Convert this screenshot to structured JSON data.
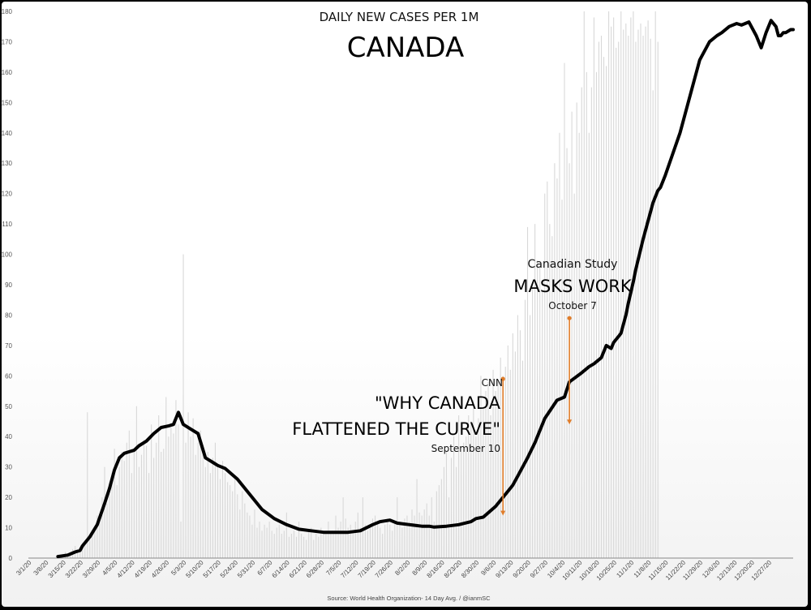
{
  "chart_data": {
    "type": "line",
    "title": "CANADA",
    "subtitle": "DAILY NEW CASES PER 1M",
    "source": "Source: World Health Organization- 14 Day Avg. / @ianmSC",
    "ylim": [
      0,
      180
    ],
    "yticks": [
      0,
      10,
      20,
      30,
      40,
      50,
      60,
      70,
      80,
      90,
      100,
      110,
      120,
      130,
      140,
      150,
      160,
      170,
      180
    ],
    "xlim": [
      0,
      311
    ],
    "x_tick_labels": [
      "3/1/20",
      "3/8/20",
      "3/15/20",
      "3/22/20",
      "3/29/20",
      "4/5/20",
      "4/12/20",
      "4/19/20",
      "4/26/20",
      "5/3/20",
      "5/10/20",
      "5/17/20",
      "5/24/20",
      "5/31/20",
      "6/7/20",
      "6/14/20",
      "6/21/20",
      "6/28/20",
      "7/5/20",
      "7/12/20",
      "7/19/20",
      "7/26/20",
      "8/2/20",
      "8/9/20",
      "8/16/20",
      "8/23/20",
      "8/30/20",
      "9/6/20",
      "9/13/20",
      "9/20/20",
      "9/27/20",
      "10/4/20",
      "10/11/20",
      "10/18/20",
      "10/25/20",
      "11/1/20",
      "11/8/20",
      "11/15/20",
      "11/22/20",
      "11/29/20",
      "12/6/20",
      "12/13/20",
      "12/20/20",
      "12/27/20"
    ],
    "grid": false,
    "series": [
      {
        "color": "#000000",
        "x": [
          12,
          16,
          19,
          21,
          22,
          24,
          25,
          28,
          31,
          33,
          35,
          37,
          39,
          41,
          43,
          45,
          48,
          51,
          54,
          57,
          59,
          61,
          62,
          63,
          66,
          69,
          72,
          75,
          77,
          80,
          85,
          90,
          95,
          100,
          105,
          110,
          115,
          120,
          125,
          130,
          135,
          140,
          143,
          147,
          150,
          155,
          160,
          163,
          165,
          170,
          175,
          180,
          182,
          185,
          190,
          195,
          197,
          199,
          203,
          206,
          210,
          215,
          218,
          220,
          225,
          228,
          230,
          233,
          235,
          237,
          238,
          240,
          241,
          243,
          244,
          246,
          247,
          250,
          254,
          256,
          257,
          259,
          262,
          265,
          268,
          271,
          273,
          277,
          280,
          282,
          285,
          288,
          290,
          293,
          296,
          298,
          300,
          302,
          304,
          305,
          306,
          307,
          308,
          310,
          311
        ],
        "y": [
          0.5,
          1,
          2,
          2.5,
          4,
          6,
          7,
          11,
          18,
          23,
          29,
          33,
          34.5,
          35,
          35.5,
          37,
          38.5,
          41,
          43,
          43.5,
          44,
          48,
          46,
          44,
          42.5,
          41,
          33,
          31.5,
          30.5,
          29.5,
          26,
          21,
          16,
          13,
          11,
          9.5,
          9,
          8.5,
          8.5,
          8.5,
          9,
          11,
          12,
          12.5,
          11.5,
          11,
          10.5,
          10.5,
          10.2,
          10.5,
          11,
          12,
          13,
          13.5,
          17,
          22,
          24,
          27,
          33,
          38,
          46,
          52,
          53,
          58,
          61,
          63,
          64,
          66,
          70,
          69,
          71,
          73,
          74,
          80,
          84,
          91,
          95,
          105,
          117,
          121,
          122,
          126,
          133,
          140,
          149,
          158,
          164,
          170,
          172,
          173,
          175,
          176,
          175.5,
          176.5,
          172,
          168,
          173,
          177,
          175,
          172,
          172,
          173,
          173,
          174,
          174
        ]
      }
    ],
    "daily_bars": [
      0,
      0,
      0,
      0,
      0,
      0,
      0,
      0,
      0,
      0,
      0,
      0,
      0.5,
      1,
      1,
      2,
      1,
      2,
      3,
      4,
      2,
      3,
      5,
      4,
      48,
      6,
      8,
      10,
      14,
      12,
      20,
      30,
      18,
      25,
      28,
      36,
      24,
      30,
      35,
      32,
      38,
      42,
      28,
      36,
      50,
      30,
      34,
      39,
      37,
      28,
      44,
      33,
      38,
      47,
      35,
      36,
      53,
      40,
      43,
      41,
      52,
      44,
      12,
      100,
      38,
      48,
      40,
      46,
      34,
      38,
      42,
      36,
      30,
      35,
      28,
      33,
      38,
      30,
      26,
      32,
      28,
      25,
      24,
      22,
      27,
      21,
      16,
      22,
      18,
      15,
      14,
      11,
      16,
      10,
      12,
      9,
      11,
      10,
      12,
      9,
      8,
      10,
      11,
      8,
      9,
      15,
      7,
      8,
      9,
      7,
      12,
      8,
      7,
      6,
      9,
      10,
      6,
      8,
      7,
      10,
      9,
      8,
      12,
      8,
      9,
      14,
      10,
      12,
      20,
      13,
      10,
      11,
      9,
      12,
      15,
      10,
      20,
      11,
      9,
      10,
      13,
      14,
      12,
      10,
      8,
      11,
      13,
      11,
      9,
      12,
      20,
      12,
      10,
      13,
      14,
      12,
      16,
      14,
      26,
      15,
      14,
      16,
      18,
      14,
      20,
      12,
      22,
      24,
      26,
      30,
      35,
      20,
      33,
      40,
      30,
      47,
      35,
      38,
      40,
      47,
      45,
      52,
      40,
      46,
      60,
      50,
      55,
      58,
      47,
      62,
      55,
      58,
      66,
      60,
      63,
      70,
      62,
      74,
      68,
      80,
      75,
      65,
      85,
      109,
      80,
      90,
      110,
      98,
      96,
      88,
      120,
      124,
      110,
      106,
      130,
      125,
      140,
      118,
      163,
      135,
      130,
      147,
      120,
      150,
      140,
      155,
      180,
      160,
      140,
      155,
      178,
      160,
      170,
      172,
      165,
      162,
      180,
      175,
      178,
      168,
      170,
      180,
      174,
      176,
      172,
      178,
      180,
      170,
      174,
      176,
      172,
      175,
      177,
      171,
      154,
      180,
      170
    ]
  },
  "annotations": {
    "cnn": {
      "label": "CNN",
      "quote_line1": "\"WHY CANADA",
      "quote_line2": "FLATTENED THE CURVE\"",
      "date": "September 10",
      "x": 193,
      "y_top": 59,
      "y_bottom": 14
    },
    "study": {
      "label": "Canadian Study",
      "headline": "MASKS WORK",
      "date": "October 7",
      "x": 220,
      "y_top": 79,
      "y_bottom": 44
    },
    "arrow_color": "#e07d2a"
  }
}
